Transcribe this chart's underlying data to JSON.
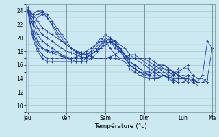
{
  "title": "Température (°c)",
  "background_color": "#cce8f0",
  "grid_color": "#a0bcc8",
  "line_color": "#1a3aaa",
  "marker_color": "#1a3aaa",
  "ylim": [
    9,
    25
  ],
  "yticks": [
    10,
    12,
    14,
    16,
    18,
    20,
    22,
    24
  ],
  "day_labels": [
    "Jeu",
    "Ven",
    "Sam",
    "Dim",
    "Lun",
    "Ma"
  ],
  "day_positions": [
    0,
    8,
    16,
    24,
    32,
    38
  ],
  "n_points": 40,
  "series": [
    [
      24.5,
      23.5,
      22.5,
      21.5,
      21.0,
      20.5,
      20.0,
      19.5,
      19.0,
      18.5,
      18.0,
      17.8,
      17.5,
      17.3,
      17.0,
      17.0,
      17.0,
      17.0,
      17.0,
      16.8,
      16.5,
      15.5,
      15.0,
      14.5,
      14.2,
      14.0,
      14.0,
      14.2,
      14.5,
      14.2,
      14.0,
      14.0,
      14.0,
      14.0,
      13.8,
      13.5,
      13.5,
      14.0,
      18.5,
      null
    ],
    [
      24.2,
      22.0,
      19.5,
      18.5,
      18.0,
      17.8,
      17.5,
      17.3,
      17.0,
      17.0,
      17.2,
      17.5,
      18.0,
      18.5,
      19.0,
      19.5,
      19.5,
      19.3,
      19.0,
      18.5,
      17.5,
      16.0,
      15.5,
      15.0,
      14.8,
      14.5,
      14.5,
      15.0,
      15.5,
      15.3,
      15.0,
      14.5,
      14.0,
      13.5,
      13.5,
      13.5,
      14.5,
      19.5,
      18.5,
      null
    ],
    [
      24.0,
      21.0,
      19.0,
      18.5,
      18.2,
      18.0,
      17.8,
      17.5,
      17.0,
      16.8,
      16.5,
      16.5,
      17.0,
      17.5,
      18.0,
      18.5,
      19.5,
      19.8,
      19.5,
      18.5,
      17.0,
      16.0,
      15.5,
      15.0,
      14.5,
      14.5,
      15.0,
      15.5,
      16.0,
      15.5,
      15.0,
      14.5,
      14.0,
      14.5,
      14.5,
      14.0,
      14.0,
      13.5,
      null,
      null
    ],
    [
      24.0,
      20.5,
      18.5,
      17.5,
      17.0,
      17.0,
      17.0,
      17.0,
      17.0,
      17.0,
      17.0,
      17.0,
      17.0,
      17.5,
      18.0,
      19.0,
      19.5,
      20.0,
      19.5,
      18.5,
      17.5,
      16.5,
      16.0,
      15.5,
      15.0,
      15.0,
      15.5,
      16.0,
      16.0,
      15.5,
      15.0,
      14.5,
      14.5,
      14.5,
      14.0,
      13.5,
      13.5,
      null,
      null,
      null
    ],
    [
      24.0,
      20.0,
      18.0,
      17.0,
      16.5,
      16.5,
      16.5,
      16.5,
      16.5,
      16.5,
      16.5,
      16.5,
      16.5,
      17.0,
      17.5,
      18.5,
      19.0,
      19.5,
      19.0,
      18.0,
      17.0,
      16.0,
      15.5,
      15.0,
      14.5,
      14.5,
      15.0,
      15.5,
      15.5,
      15.0,
      14.5,
      14.0,
      14.0,
      14.0,
      13.5,
      13.0,
      null,
      null,
      null,
      null
    ],
    [
      24.5,
      23.0,
      21.5,
      20.5,
      20.0,
      19.5,
      19.0,
      18.5,
      18.0,
      17.8,
      17.5,
      17.2,
      17.0,
      17.0,
      17.0,
      17.0,
      17.0,
      17.2,
      17.5,
      18.0,
      17.5,
      16.5,
      16.0,
      15.5,
      15.0,
      14.5,
      14.0,
      14.0,
      14.5,
      14.0,
      13.5,
      13.5,
      13.5,
      14.0,
      13.8,
      13.5,
      null,
      null,
      null,
      null
    ],
    [
      24.2,
      22.5,
      20.5,
      19.5,
      19.0,
      18.5,
      18.0,
      17.5,
      17.2,
      17.0,
      17.0,
      17.0,
      17.2,
      17.5,
      18.0,
      18.5,
      19.0,
      19.5,
      19.5,
      19.0,
      18.5,
      17.5,
      17.0,
      16.5,
      16.0,
      15.5,
      15.0,
      14.5,
      14.5,
      14.0,
      13.8,
      13.5,
      13.5,
      null,
      null,
      null,
      null,
      null,
      null,
      null
    ],
    [
      24.0,
      22.0,
      23.0,
      23.5,
      23.0,
      22.0,
      20.5,
      19.5,
      19.0,
      18.5,
      18.0,
      17.8,
      17.5,
      17.5,
      18.0,
      19.0,
      20.0,
      19.5,
      18.5,
      18.0,
      17.5,
      17.0,
      17.0,
      17.0,
      17.0,
      16.5,
      16.0,
      15.5,
      15.0,
      14.5,
      14.5,
      15.0,
      15.5,
      15.5,
      14.5,
      null,
      null,
      null,
      null,
      null
    ],
    [
      24.0,
      23.0,
      23.5,
      23.8,
      23.5,
      22.5,
      21.5,
      20.5,
      19.5,
      18.5,
      17.8,
      17.5,
      17.5,
      17.8,
      18.5,
      19.5,
      20.5,
      20.0,
      19.0,
      18.5,
      17.5,
      17.0,
      17.0,
      17.0,
      17.0,
      17.0,
      16.5,
      16.0,
      15.5,
      15.0,
      14.5,
      15.0,
      15.5,
      16.0,
      null,
      null,
      null,
      null,
      null,
      null
    ],
    [
      24.0,
      23.5,
      24.0,
      24.0,
      23.0,
      22.0,
      21.0,
      20.0,
      19.0,
      18.5,
      18.0,
      17.5,
      17.5,
      18.0,
      19.0,
      20.0,
      19.5,
      18.5,
      17.5,
      17.0,
      17.0,
      17.5,
      17.5,
      17.0,
      16.5,
      16.0,
      15.5,
      15.0,
      14.5,
      14.0,
      14.5,
      15.5,
      null,
      null,
      null,
      null,
      null,
      null,
      null,
      null
    ]
  ]
}
